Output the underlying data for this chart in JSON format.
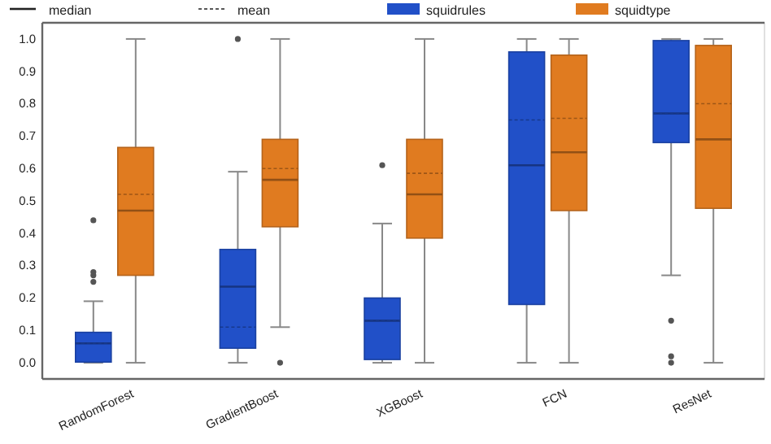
{
  "chart_data": {
    "type": "box",
    "categories": [
      "RandomForest",
      "GradientBoost",
      "XGBoost",
      "FCN",
      "ResNet"
    ],
    "ylim": [
      -0.05,
      1.05
    ],
    "yticks": [
      {
        "value": 0,
        "label": "0.0"
      },
      {
        "value": 0.1,
        "label": "0.1"
      },
      {
        "value": 0.2,
        "label": "0.2"
      },
      {
        "value": 0.3,
        "label": "0.3"
      },
      {
        "value": 0.4,
        "label": "0.4"
      },
      {
        "value": 0.5,
        "label": "0.5"
      },
      {
        "value": 0.6,
        "label": "0.6"
      },
      {
        "value": 0.7,
        "label": "0.7"
      },
      {
        "value": 0.8,
        "label": "0.8"
      },
      {
        "value": 0.9,
        "label": "0.9"
      },
      {
        "value": 1,
        "label": "1.0"
      }
    ],
    "legend": "top",
    "grid": false,
    "annotations": [
      "median",
      "mean"
    ],
    "series": [
      {
        "name": "squidrules",
        "color": "#2150c8",
        "boxes": [
          {
            "low": 0,
            "q1": 0.002,
            "median": 0.06,
            "q3": 0.094,
            "high": 0.19,
            "mean": 0.06,
            "outliers": [
              0.25,
              0.27,
              0.28,
              0.44
            ]
          },
          {
            "low": 0,
            "q1": 0.045,
            "median": 0.235,
            "q3": 0.35,
            "high": 0.59,
            "mean": 0.11,
            "outliers": [
              1.0
            ]
          },
          {
            "low": 0,
            "q1": 0.01,
            "median": 0.13,
            "q3": 0.2,
            "high": 0.43,
            "mean": 0.13,
            "outliers": [
              0.61
            ]
          },
          {
            "low": 0,
            "q1": 0.18,
            "median": 0.61,
            "q3": 0.96,
            "high": 1.0,
            "mean": 0.75
          },
          {
            "low": 0.27,
            "q1": 0.68,
            "median": 0.77,
            "q3": 0.995,
            "high": 1.0,
            "mean": 0.77,
            "outliers": [
              0.13,
              0.02,
              0.0
            ]
          }
        ]
      },
      {
        "name": "squidtype",
        "color": "#e07b20",
        "boxes": [
          {
            "low": 0,
            "q1": 0.27,
            "median": 0.47,
            "q3": 0.665,
            "high": 1.0,
            "mean": 0.52
          },
          {
            "low": 0.11,
            "q1": 0.42,
            "median": 0.565,
            "q3": 0.69,
            "high": 1.0,
            "mean": 0.6,
            "outliers": [
              0.0
            ]
          },
          {
            "low": 0,
            "q1": 0.385,
            "median": 0.52,
            "q3": 0.69,
            "high": 1.0,
            "mean": 0.585
          },
          {
            "low": 0,
            "q1": 0.47,
            "median": 0.65,
            "q3": 0.95,
            "high": 1.0,
            "mean": 0.755
          },
          {
            "low": 0,
            "q1": 0.477,
            "median": 0.69,
            "q3": 0.98,
            "high": 1.0,
            "mean": 0.8
          }
        ]
      }
    ]
  }
}
